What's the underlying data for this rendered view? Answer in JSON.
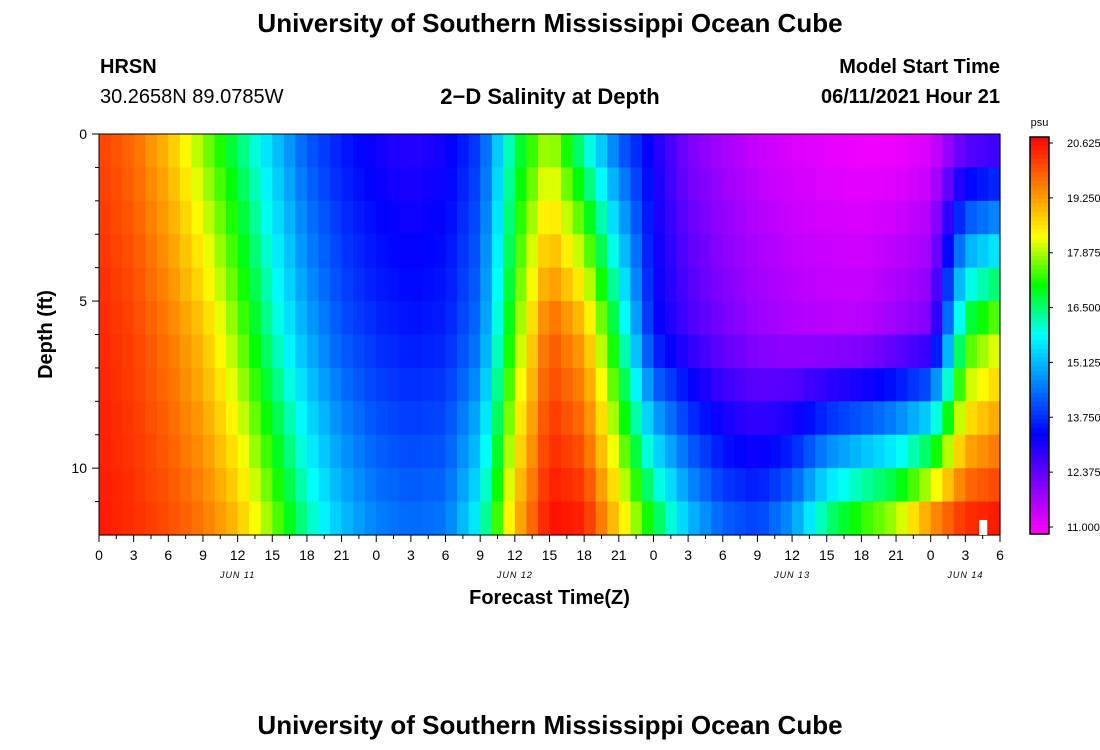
{
  "page": {
    "title_top": "University of Southern Mississippi Ocean Cube",
    "title_bottom": "University of Southern Mississippi Ocean Cube",
    "station": "HRSN",
    "coords": "30.2658N  89.0785W",
    "plot_title": "2−D Salinity at Depth",
    "model_label": "Model Start Time",
    "model_time": "06/11/2021 Hour 21"
  },
  "colors": {
    "background": "#ffffff",
    "colormap": [
      "#ff00ff",
      "#8000ff",
      "#0000ff",
      "#0080ff",
      "#00ffff",
      "#00ff00",
      "#ffff00",
      "#ff8000",
      "#ff0000"
    ]
  },
  "chart_data": {
    "type": "heatmap",
    "title": "2−D Salinity at Depth",
    "xlabel": "Forecast Time(Z)",
    "ylabel": "Depth (ft)",
    "x_hours_range": [
      0,
      78
    ],
    "y_range_ft": [
      0,
      12
    ],
    "x_tick_labels": [
      "0",
      "3",
      "6",
      "9",
      "12",
      "15",
      "18",
      "21",
      "0",
      "3",
      "6",
      "9",
      "12",
      "15",
      "18",
      "21",
      "0",
      "3",
      "6",
      "9",
      "12",
      "15",
      "18",
      "21",
      "0",
      "3",
      "6"
    ],
    "y_tick_labels": [
      "0",
      "5",
      "10"
    ],
    "y_tick_values": [
      0,
      5,
      10
    ],
    "date_labels": [
      {
        "label": "JUN 11",
        "hour": 12
      },
      {
        "label": "JUN 12",
        "hour": 36
      },
      {
        "label": "JUN 13",
        "hour": 60
      },
      {
        "label": "JUN 14",
        "hour": 75
      }
    ],
    "colorbar": {
      "unit": "psu",
      "min": 11.0,
      "max": 20.625,
      "tick_labels": [
        "20.625",
        "19.250",
        "17.875",
        "16.500",
        "15.125",
        "13.750",
        "12.375",
        "11.000"
      ]
    },
    "salinity_psu_by_depth": {
      "depth_ft": [
        0,
        6,
        11.5
      ],
      "hours": [
        0,
        3,
        6,
        9,
        12,
        15,
        18,
        21,
        24,
        27,
        30,
        33,
        36,
        39,
        42,
        45,
        48,
        51,
        54,
        57,
        60,
        63,
        66,
        69,
        72,
        75,
        78
      ],
      "surface": [
        20.0,
        19.6,
        18.8,
        17.6,
        16.5,
        15.3,
        14.2,
        13.6,
        13.2,
        13.0,
        13.2,
        14.0,
        16.5,
        17.8,
        16.0,
        14.2,
        13.2,
        12.2,
        11.8,
        11.5,
        11.3,
        11.2,
        11.1,
        11.1,
        11.3,
        12.2,
        12.4
      ],
      "mid": [
        20.3,
        20.0,
        19.5,
        18.8,
        17.6,
        16.2,
        15.0,
        14.2,
        13.8,
        13.6,
        13.7,
        14.5,
        17.5,
        19.8,
        19.0,
        16.5,
        13.5,
        12.8,
        12.3,
        12.0,
        11.8,
        11.7,
        11.7,
        12.0,
        12.3,
        17.0,
        18.0
      ],
      "bottom": [
        20.4,
        20.2,
        19.9,
        19.5,
        18.8,
        17.6,
        16.2,
        15.2,
        14.6,
        14.4,
        14.5,
        15.8,
        18.8,
        20.5,
        20.3,
        18.6,
        16.8,
        15.2,
        14.3,
        14.0,
        14.8,
        16.4,
        17.2,
        17.8,
        19.2,
        20.2,
        20.4
      ]
    }
  }
}
